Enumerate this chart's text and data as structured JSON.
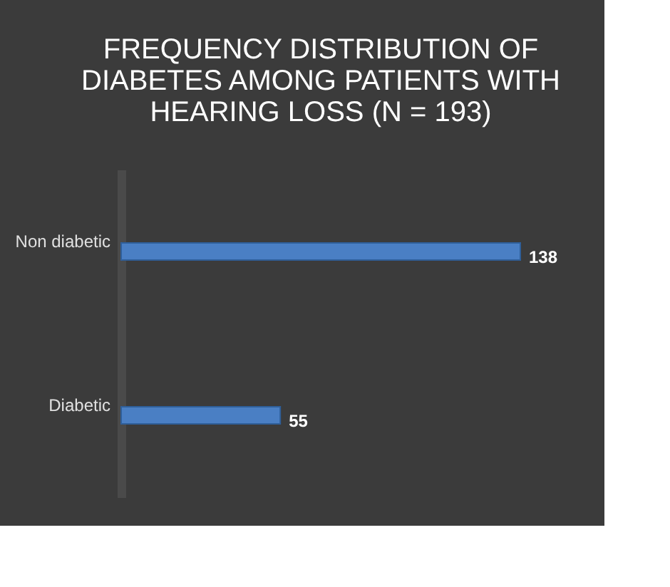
{
  "chart_data": {
    "type": "bar",
    "orientation": "horizontal",
    "title": "FREQUENCY DISTRIBUTION OF DIABETES AMONG PATIENTS WITH HEARING LOSS (N = 193)",
    "categories": [
      "Non diabetic",
      "Diabetic"
    ],
    "values": [
      138,
      55
    ],
    "color": "#4a7fc4",
    "data_labels": true
  }
}
